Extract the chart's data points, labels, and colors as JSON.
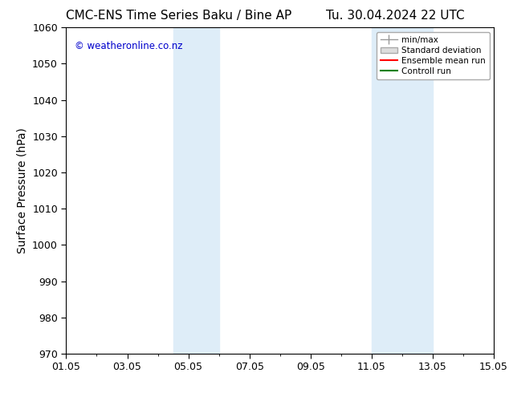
{
  "title_left": "CMC-ENS Time Series Baku / Bine AP",
  "title_right": "Tu. 30.04.2024 22 UTC",
  "ylabel": "Surface Pressure (hPa)",
  "ylim": [
    970,
    1060
  ],
  "yticks": [
    970,
    980,
    990,
    1000,
    1010,
    1020,
    1030,
    1040,
    1050,
    1060
  ],
  "xlim_start": 0,
  "xlim_end": 14,
  "xtick_labels": [
    "01.05",
    "03.05",
    "05.05",
    "07.05",
    "09.05",
    "11.05",
    "13.05",
    "15.05"
  ],
  "xtick_positions": [
    0,
    2,
    4,
    6,
    8,
    10,
    12,
    14
  ],
  "shaded_regions": [
    {
      "x_start": 3.5,
      "x_end": 5.0,
      "color": "#deedf8"
    },
    {
      "x_start": 10.0,
      "x_end": 12.0,
      "color": "#deedf8"
    }
  ],
  "watermark_text": "© weatheronline.co.nz",
  "watermark_color": "#0000cc",
  "bg_color": "#ffffff",
  "plot_bg_color": "#ffffff",
  "title_fontsize": 11,
  "axis_label_fontsize": 10,
  "tick_fontsize": 9,
  "border_color": "#000000",
  "legend_items": [
    {
      "label": "min/max",
      "color": "#999999",
      "lw": 1.0
    },
    {
      "label": "Standard deviation",
      "color": "#cccccc",
      "lw": 4.0
    },
    {
      "label": "Ensemble mean run",
      "color": "red",
      "lw": 1.5
    },
    {
      "label": "Controll run",
      "color": "green",
      "lw": 1.5
    }
  ]
}
